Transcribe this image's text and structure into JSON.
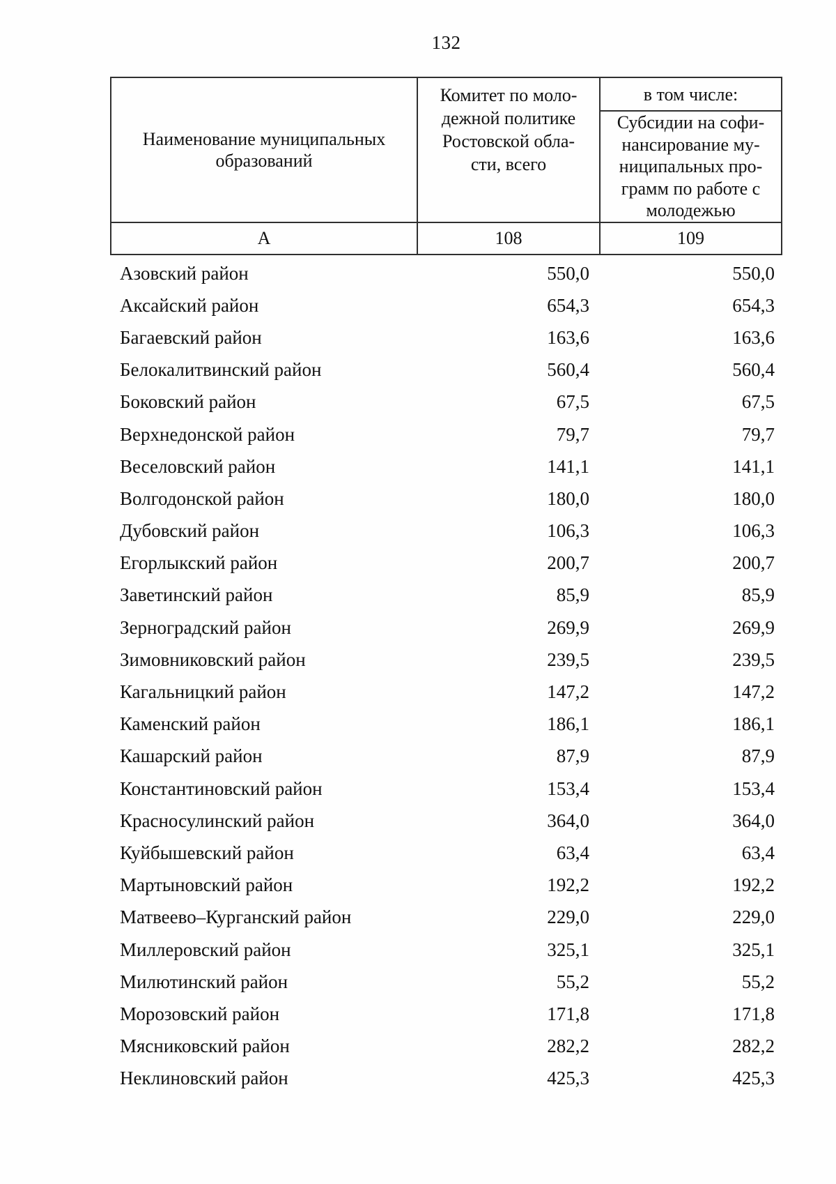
{
  "page": {
    "number": "132"
  },
  "table": {
    "header": {
      "col_name": "Наименование муниципальных\nобразований",
      "col_total": "Комитет по моло-\nдежной политике\nРостовской обла-\nсти, всего",
      "col_including": "в том числе:",
      "col_subsidy": "Субсидии на софи-\nнансирование му-\nниципальных про-\nграмм по работе с\nмолодежью",
      "letter_row": {
        "name": "А",
        "total": "108",
        "subsidy": "109"
      }
    },
    "rows": [
      {
        "name": "Азовский район",
        "total": "550,0",
        "subsidy": "550,0"
      },
      {
        "name": "Аксайский район",
        "total": "654,3",
        "subsidy": "654,3"
      },
      {
        "name": "Багаевский район",
        "total": "163,6",
        "subsidy": "163,6"
      },
      {
        "name": "Белокалитвинский район",
        "total": "560,4",
        "subsidy": "560,4"
      },
      {
        "name": "Боковский район",
        "total": "67,5",
        "subsidy": "67,5"
      },
      {
        "name": "Верхнедонской район",
        "total": "79,7",
        "subsidy": "79,7"
      },
      {
        "name": "Веселовский район",
        "total": "141,1",
        "subsidy": "141,1"
      },
      {
        "name": "Волгодонской район",
        "total": "180,0",
        "subsidy": "180,0"
      },
      {
        "name": "Дубовский район",
        "total": "106,3",
        "subsidy": "106,3"
      },
      {
        "name": "Егорлыкский район",
        "total": "200,7",
        "subsidy": "200,7"
      },
      {
        "name": "Заветинский район",
        "total": "85,9",
        "subsidy": "85,9"
      },
      {
        "name": "Зерноградский район",
        "total": "269,9",
        "subsidy": "269,9"
      },
      {
        "name": "Зимовниковский район",
        "total": "239,5",
        "subsidy": "239,5"
      },
      {
        "name": "Кагальницкий район",
        "total": "147,2",
        "subsidy": "147,2"
      },
      {
        "name": "Каменский район",
        "total": "186,1",
        "subsidy": "186,1"
      },
      {
        "name": "Кашарский район",
        "total": "87,9",
        "subsidy": "87,9"
      },
      {
        "name": "Константиновский район",
        "total": "153,4",
        "subsidy": "153,4"
      },
      {
        "name": "Красносулинский район",
        "total": "364,0",
        "subsidy": "364,0"
      },
      {
        "name": "Куйбышевский район",
        "total": "63,4",
        "subsidy": "63,4"
      },
      {
        "name": "Мартыновский район",
        "total": "192,2",
        "subsidy": "192,2"
      },
      {
        "name": "Матвеево–Курганский район",
        "total": "229,0",
        "subsidy": "229,0"
      },
      {
        "name": "Миллеровский район",
        "total": "325,1",
        "subsidy": "325,1"
      },
      {
        "name": "Милютинский район",
        "total": "55,2",
        "subsidy": "55,2"
      },
      {
        "name": "Морозовский район",
        "total": "171,8",
        "subsidy": "171,8"
      },
      {
        "name": "Мясниковский район",
        "total": "282,2",
        "subsidy": "282,2"
      },
      {
        "name": "Неклиновский район",
        "total": "425,3",
        "subsidy": "425,3"
      }
    ]
  }
}
